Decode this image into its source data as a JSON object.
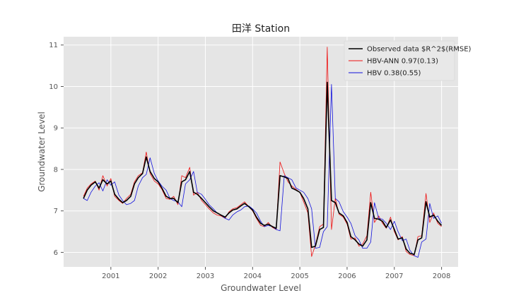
{
  "chart_data": {
    "type": "line",
    "title": "田洋 Station",
    "xlabel": "Groundwater Level",
    "ylabel": "Groundwater Level",
    "xlim": [
      2000.0,
      2008.35
    ],
    "ylim": [
      5.65,
      11.2
    ],
    "xticks": [
      2001,
      2002,
      2003,
      2004,
      2005,
      2006,
      2007,
      2008
    ],
    "xtick_labels": [
      "2001",
      "2002",
      "2003",
      "2004",
      "2005",
      "2006",
      "2007",
      "2008"
    ],
    "yticks": [
      6,
      7,
      8,
      9,
      10,
      11
    ],
    "ytick_labels": [
      "6",
      "7",
      "8",
      "9",
      "10",
      "11"
    ],
    "grid": true,
    "legend_position": "top-right",
    "x": [
      2000.42,
      2000.5,
      2000.58,
      2000.67,
      2000.75,
      2000.83,
      2000.92,
      2001.0,
      2001.08,
      2001.17,
      2001.25,
      2001.33,
      2001.42,
      2001.5,
      2001.58,
      2001.67,
      2001.75,
      2001.83,
      2001.92,
      2002.0,
      2002.08,
      2002.17,
      2002.25,
      2002.33,
      2002.42,
      2002.5,
      2002.58,
      2002.67,
      2002.75,
      2002.83,
      2002.92,
      2003.0,
      2003.08,
      2003.17,
      2003.25,
      2003.33,
      2003.42,
      2003.5,
      2003.58,
      2003.67,
      2003.75,
      2003.83,
      2003.92,
      2004.0,
      2004.08,
      2004.17,
      2004.25,
      2004.33,
      2004.42,
      2004.5,
      2004.58,
      2004.67,
      2004.75,
      2004.83,
      2004.92,
      2005.0,
      2005.08,
      2005.17,
      2005.25,
      2005.33,
      2005.42,
      2005.5,
      2005.58,
      2005.67,
      2005.75,
      2005.83,
      2005.92,
      2006.0,
      2006.08,
      2006.17,
      2006.25,
      2006.33,
      2006.42,
      2006.5,
      2006.58,
      2006.67,
      2006.75,
      2006.83,
      2006.92,
      2007.0,
      2007.08,
      2007.17,
      2007.25,
      2007.33,
      2007.42,
      2007.5,
      2007.58,
      2007.67,
      2007.75,
      2007.83,
      2007.92,
      2008.0
    ],
    "series": [
      {
        "name": "Observed data $R^2$(RMSE)",
        "color": "#000000",
        "width": 1.6,
        "values": [
          7.3,
          7.5,
          7.62,
          7.7,
          7.55,
          7.75,
          7.65,
          7.72,
          7.4,
          7.28,
          7.2,
          7.25,
          7.35,
          7.65,
          7.8,
          7.9,
          8.3,
          7.95,
          7.78,
          7.7,
          7.55,
          7.35,
          7.3,
          7.3,
          7.2,
          7.7,
          7.75,
          7.95,
          7.45,
          7.4,
          7.3,
          7.2,
          7.1,
          7.0,
          6.95,
          6.9,
          6.85,
          6.95,
          7.02,
          7.05,
          7.12,
          7.18,
          7.1,
          7.02,
          6.85,
          6.7,
          6.65,
          6.68,
          6.62,
          6.58,
          7.85,
          7.82,
          7.78,
          7.55,
          7.5,
          7.45,
          7.3,
          7.05,
          6.12,
          6.15,
          6.55,
          6.6,
          10.1,
          7.25,
          7.2,
          6.95,
          6.88,
          6.72,
          6.38,
          6.3,
          6.2,
          6.15,
          6.3,
          7.2,
          6.82,
          6.8,
          6.75,
          6.6,
          6.78,
          6.55,
          6.32,
          6.35,
          6.08,
          5.98,
          5.95,
          6.3,
          6.35,
          7.22,
          6.85,
          6.9,
          6.75,
          6.65
        ]
      },
      {
        "name": "HBV-ANN 0.97(0.13)",
        "color": "#ee1111",
        "width": 0.8,
        "values": [
          7.35,
          7.55,
          7.65,
          7.72,
          7.5,
          7.85,
          7.6,
          7.78,
          7.35,
          7.25,
          7.18,
          7.3,
          7.4,
          7.7,
          7.85,
          7.92,
          8.42,
          7.9,
          7.72,
          7.65,
          7.52,
          7.3,
          7.28,
          7.35,
          7.15,
          7.85,
          7.8,
          8.05,
          7.38,
          7.45,
          7.25,
          7.15,
          7.05,
          6.95,
          6.9,
          6.88,
          6.82,
          6.98,
          7.05,
          7.08,
          7.15,
          7.22,
          7.1,
          7.0,
          6.82,
          6.65,
          6.62,
          6.72,
          6.6,
          6.55,
          8.18,
          7.9,
          7.7,
          7.6,
          7.52,
          7.45,
          7.22,
          6.95,
          5.9,
          6.18,
          6.62,
          6.68,
          10.95,
          6.55,
          7.3,
          6.92,
          6.85,
          6.68,
          6.32,
          6.35,
          6.15,
          6.2,
          6.4,
          7.45,
          6.72,
          6.88,
          6.7,
          6.58,
          6.85,
          6.5,
          6.3,
          6.38,
          6.02,
          5.95,
          5.92,
          6.38,
          6.4,
          7.42,
          6.72,
          6.95,
          6.7,
          6.62
        ]
      },
      {
        "name": "HBV 0.38(0.55)",
        "color": "#1111dd",
        "width": 0.8,
        "values": [
          7.3,
          7.25,
          7.45,
          7.6,
          7.68,
          7.48,
          7.75,
          7.62,
          7.7,
          7.38,
          7.25,
          7.15,
          7.18,
          7.25,
          7.6,
          7.8,
          7.88,
          8.28,
          7.9,
          7.72,
          7.6,
          7.5,
          7.3,
          7.25,
          7.22,
          7.1,
          7.65,
          7.75,
          7.95,
          7.45,
          7.4,
          7.28,
          7.15,
          7.05,
          6.95,
          6.9,
          6.82,
          6.78,
          6.9,
          6.98,
          7.02,
          7.1,
          7.12,
          7.05,
          6.95,
          6.75,
          6.62,
          6.65,
          6.62,
          6.55,
          6.52,
          7.85,
          7.8,
          7.75,
          7.55,
          7.5,
          7.45,
          7.3,
          7.05,
          6.1,
          6.12,
          6.5,
          6.62,
          10.05,
          7.3,
          7.22,
          6.98,
          6.85,
          6.7,
          6.4,
          6.3,
          6.1,
          6.1,
          6.25,
          7.2,
          6.82,
          6.8,
          6.7,
          6.55,
          6.75,
          6.5,
          6.28,
          6.32,
          6.05,
          5.92,
          5.88,
          6.25,
          6.32,
          7.18,
          6.82,
          6.88,
          6.7
        ]
      }
    ]
  }
}
